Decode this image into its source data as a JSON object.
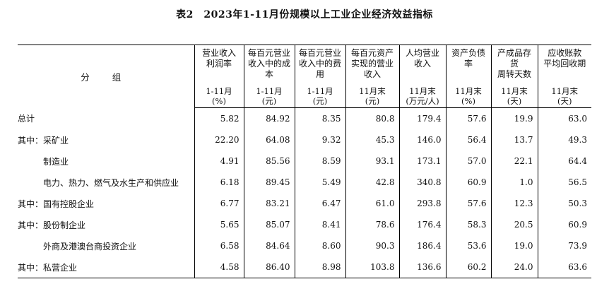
{
  "title": "表2　2023年1-11月份规模以上工业企业经济效益指标",
  "header": {
    "group_label": "分 组",
    "columns": [
      {
        "name": "营业收入\n利润率",
        "unit": "1-11月\n(%)"
      },
      {
        "name": "每百元营业\n收入中的成\n本",
        "unit": "1-11月\n(元)"
      },
      {
        "name": "每百元营业\n收入中的费\n用",
        "unit": "1-11月\n(元)"
      },
      {
        "name": "每百元资产\n实现的营业\n收入",
        "unit": "11月末\n(元)"
      },
      {
        "name": "人均营业\n收入",
        "unit": "11月末\n(万元/人)"
      },
      {
        "name": "资产负债\n率",
        "unit": "11月末\n(%)"
      },
      {
        "name": "产成品存\n货\n周转天数",
        "unit": "11月末\n(天)"
      },
      {
        "name": "应收账款\n平均回收期",
        "unit": "11月末\n(天)"
      }
    ]
  },
  "rows": [
    {
      "label": "总计",
      "indent": false,
      "values": [
        "5.82",
        "84.92",
        "8.35",
        "80.8",
        "179.4",
        "57.6",
        "19.9",
        "63.0"
      ]
    },
    {
      "label": "其中：采矿业",
      "indent": false,
      "values": [
        "22.20",
        "64.08",
        "9.32",
        "45.3",
        "146.0",
        "56.4",
        "13.7",
        "49.3"
      ]
    },
    {
      "label": "制造业",
      "indent": true,
      "values": [
        "4.91",
        "85.56",
        "8.59",
        "93.1",
        "173.1",
        "57.0",
        "22.1",
        "64.4"
      ]
    },
    {
      "label": "电力、热力、燃气及水生产和供应业",
      "indent": true,
      "values": [
        "6.18",
        "89.45",
        "5.49",
        "42.8",
        "340.8",
        "60.9",
        "1.0",
        "56.5"
      ]
    },
    {
      "label": "其中：国有控股企业",
      "indent": false,
      "values": [
        "6.77",
        "83.21",
        "6.47",
        "61.0",
        "293.8",
        "57.6",
        "12.3",
        "50.3"
      ]
    },
    {
      "label": "其中：股份制企业",
      "indent": false,
      "values": [
        "5.65",
        "85.07",
        "8.41",
        "78.6",
        "176.4",
        "58.3",
        "20.5",
        "60.9"
      ]
    },
    {
      "label": "外商及港澳台商投资企业",
      "indent": true,
      "values": [
        "6.58",
        "84.64",
        "8.60",
        "90.3",
        "186.4",
        "53.6",
        "19.0",
        "73.9"
      ]
    },
    {
      "label": "其中：私营企业",
      "indent": false,
      "values": [
        "4.58",
        "86.40",
        "8.98",
        "103.8",
        "136.6",
        "60.2",
        "24.0",
        "63.6"
      ]
    }
  ]
}
